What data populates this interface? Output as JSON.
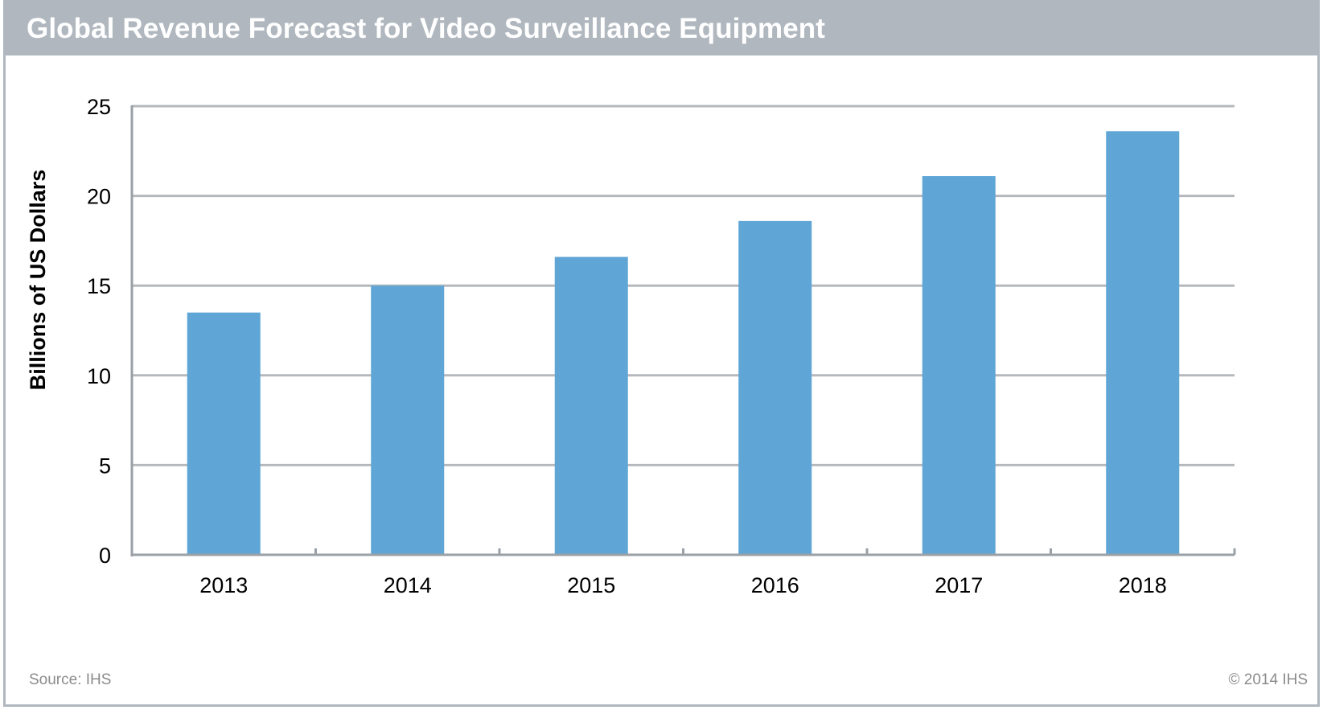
{
  "source": "Source: IHS",
  "copyright": "© 2014 IHS",
  "chart_data": {
    "type": "bar",
    "title": "Global Revenue Forecast for Video Surveillance Equipment",
    "xlabel": "",
    "ylabel": "Billions of US Dollars",
    "categories": [
      "2013",
      "2014",
      "2015",
      "2016",
      "2017",
      "2018"
    ],
    "values": [
      13.5,
      15.0,
      16.6,
      18.6,
      21.1,
      23.6
    ],
    "ylim": [
      0,
      25
    ],
    "yticks": [
      0,
      5,
      10,
      15,
      20,
      25
    ],
    "grid": true,
    "legend": "none",
    "bar_color": "#5fa6d6",
    "grid_color": "#b5b9bd"
  }
}
